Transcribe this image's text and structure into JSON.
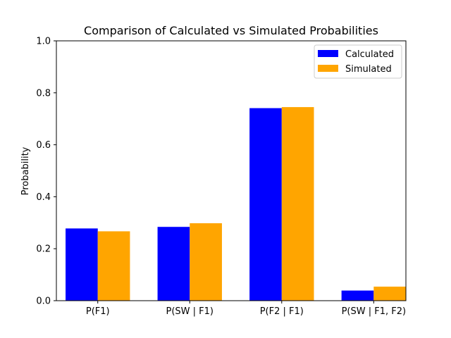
{
  "chart_data": {
    "type": "bar",
    "title": "Comparison of Calculated vs Simulated Probabilities",
    "xlabel": "",
    "ylabel": "Probability",
    "categories": [
      "P(F1)",
      "P(SW | F1)",
      "P(F2 | F1)",
      "P(SW | F1, F2)"
    ],
    "series": [
      {
        "name": "Calculated",
        "color": "#0000ff",
        "values": [
          0.278,
          0.284,
          0.741,
          0.039
        ]
      },
      {
        "name": "Simulated",
        "color": "#ffa500",
        "values": [
          0.267,
          0.298,
          0.745,
          0.054
        ]
      }
    ],
    "ylim": [
      0,
      1.0
    ],
    "yticks": [
      "0.0",
      "0.2",
      "0.4",
      "0.6",
      "0.8",
      "1.0"
    ],
    "grid": false,
    "legend_position": "top-right"
  }
}
